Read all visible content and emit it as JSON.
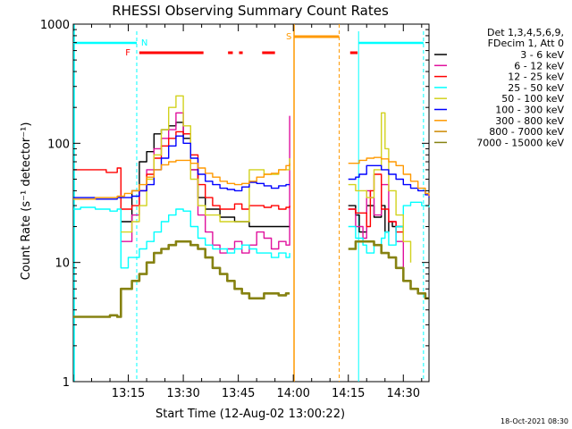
{
  "chart_data": {
    "type": "line",
    "title": "RHESSI Observing Summary Count Rates",
    "xlabel": "Start Time (12-Aug-02 13:00:22)",
    "ylabel": "Count Rate (s⁻¹ detector⁻¹)",
    "y_scale": "log",
    "ylim": [
      1,
      1000
    ],
    "xlim_minutes": [
      0,
      97
    ],
    "x_ticks": [
      {
        "minute": 15,
        "label": "13:15"
      },
      {
        "minute": 30,
        "label": "13:30"
      },
      {
        "minute": 45,
        "label": "13:45"
      },
      {
        "minute": 60,
        "label": "14:00"
      },
      {
        "minute": 75,
        "label": "14:15"
      },
      {
        "minute": 90,
        "label": "14:30"
      }
    ],
    "y_ticks": [
      {
        "value": 1,
        "label": "1"
      },
      {
        "value": 10,
        "label": "10"
      },
      {
        "value": 100,
        "label": "100"
      },
      {
        "value": 1000,
        "label": "1000"
      }
    ],
    "legend_header": [
      "Det 1,3,4,5,6,9,",
      "FDecim 1, Att 0"
    ],
    "legend_placement": "right",
    "timestamp": "18-Oct-2021 08:30",
    "series": [
      {
        "name": "3 - 6 keV",
        "color": "#000000",
        "x": [
          0,
          12,
          13,
          16,
          18,
          20,
          22,
          24,
          26,
          28,
          30,
          32,
          34,
          36,
          40,
          44,
          48,
          52,
          56,
          59,
          60,
          74,
          75,
          77,
          78,
          80,
          82,
          84,
          85,
          86,
          87,
          88,
          90,
          93
        ],
        "y": [
          null,
          null,
          22,
          40,
          70,
          85,
          120,
          130,
          140,
          150,
          110,
          60,
          35,
          28,
          24,
          22,
          20,
          20,
          20,
          20,
          null,
          null,
          30,
          25,
          18,
          30,
          24,
          30,
          18,
          22,
          20,
          20,
          17,
          null
        ]
      },
      {
        "name": "6 - 12 keV",
        "color": "#e0119d",
        "x": [
          0,
          12,
          13,
          16,
          18,
          20,
          22,
          24,
          26,
          28,
          30,
          32,
          34,
          36,
          38,
          40,
          42,
          44,
          46,
          48,
          50,
          52,
          54,
          56,
          58,
          59,
          60,
          74,
          75,
          77,
          79,
          80,
          81,
          82,
          84,
          86,
          88,
          90,
          93
        ],
        "y": [
          null,
          null,
          15,
          25,
          40,
          60,
          90,
          110,
          130,
          180,
          120,
          60,
          25,
          18,
          14,
          12,
          13,
          15,
          12,
          14,
          18,
          16,
          13,
          15,
          14,
          170,
          null,
          null,
          28,
          20,
          16,
          40,
          35,
          25,
          45,
          22,
          15,
          8,
          null
        ]
      },
      {
        "name": "12 - 25 keV",
        "color": "#ff0000",
        "x": [
          0,
          1,
          6,
          9,
          12,
          13,
          16,
          18,
          20,
          22,
          24,
          26,
          28,
          30,
          32,
          34,
          36,
          38,
          40,
          42,
          44,
          46,
          48,
          50,
          52,
          54,
          56,
          58,
          59,
          60,
          74,
          75,
          77,
          80,
          81,
          82,
          84,
          86,
          88,
          90,
          93,
          96,
          97
        ],
        "y": [
          60,
          60,
          60,
          57,
          62,
          28,
          30,
          40,
          55,
          75,
          95,
          110,
          125,
          120,
          80,
          45,
          35,
          30,
          28,
          28,
          31,
          28,
          30,
          30,
          29,
          30,
          28,
          29,
          30,
          null,
          null,
          28,
          26,
          20,
          40,
          55,
          28,
          22,
          18,
          15,
          null,
          null,
          null
        ]
      },
      {
        "name": "25 - 50 keV",
        "color": "#00ffff",
        "x": [
          0,
          2,
          6,
          10,
          12,
          13,
          15,
          18,
          20,
          22,
          24,
          26,
          28,
          30,
          32,
          34,
          36,
          38,
          40,
          42,
          44,
          46,
          48,
          50,
          52,
          54,
          56,
          58,
          59,
          60,
          74,
          75,
          77,
          79,
          80,
          82,
          84,
          85,
          86,
          88,
          90,
          92,
          95,
          97
        ],
        "y": [
          28,
          29,
          28,
          27,
          28,
          9,
          11,
          13,
          15,
          18,
          22,
          25,
          28,
          27,
          20,
          16,
          14,
          13,
          13,
          12,
          13,
          14,
          13,
          12,
          12,
          11,
          12,
          11,
          12,
          null,
          null,
          20,
          16,
          14,
          12,
          14,
          16,
          18,
          14,
          20,
          30,
          32,
          30,
          29
        ]
      },
      {
        "name": "50 - 100 keV",
        "color": "#d2d21e",
        "x": [
          0,
          12,
          13,
          16,
          18,
          20,
          22,
          24,
          26,
          28,
          30,
          32,
          34,
          36,
          40,
          44,
          48,
          52,
          56,
          59,
          60,
          74,
          75,
          77,
          80,
          82,
          84,
          85,
          86,
          88,
          90,
          92,
          93
        ],
        "y": [
          null,
          null,
          18,
          22,
          30,
          50,
          80,
          130,
          200,
          250,
          140,
          50,
          30,
          25,
          22,
          22,
          60,
          55,
          60,
          75,
          null,
          null,
          45,
          40,
          35,
          60,
          180,
          90,
          40,
          25,
          15,
          10,
          null
        ]
      },
      {
        "name": "100 - 300 keV",
        "color": "#0000ff",
        "x": [
          0,
          1,
          6,
          12,
          13,
          16,
          18,
          20,
          22,
          24,
          26,
          28,
          30,
          32,
          34,
          36,
          38,
          40,
          42,
          44,
          46,
          48,
          50,
          52,
          54,
          56,
          58,
          59,
          60,
          74,
          75,
          77,
          78,
          80,
          82,
          84,
          86,
          88,
          90,
          92,
          94,
          96,
          97
        ],
        "y": [
          35,
          35,
          34,
          35,
          35,
          36,
          40,
          45,
          60,
          75,
          95,
          115,
          100,
          75,
          55,
          48,
          45,
          42,
          41,
          40,
          43,
          47,
          46,
          44,
          42,
          44,
          45,
          45,
          null,
          null,
          50,
          52,
          55,
          65,
          65,
          60,
          55,
          50,
          45,
          42,
          40,
          37,
          35
        ]
      },
      {
        "name": "300 - 800 keV",
        "color": "#ff9900",
        "x": [
          0,
          6,
          12,
          14,
          16,
          18,
          20,
          22,
          24,
          26,
          28,
          30,
          32,
          34,
          36,
          38,
          40,
          42,
          44,
          46,
          48,
          50,
          52,
          54,
          56,
          58,
          59,
          60,
          74,
          75,
          78,
          80,
          82,
          84,
          86,
          88,
          90,
          92,
          94,
          96,
          97
        ],
        "y": [
          34,
          35,
          36,
          38,
          40,
          45,
          52,
          60,
          66,
          70,
          72,
          72,
          68,
          62,
          56,
          52,
          48,
          46,
          45,
          46,
          48,
          52,
          55,
          56,
          60,
          65,
          68,
          null,
          null,
          68,
          72,
          75,
          76,
          74,
          70,
          65,
          55,
          48,
          42,
          38,
          36
        ]
      },
      {
        "name": "800 - 7000 keV",
        "color": "#cc8800",
        "x": [
          0,
          12,
          13,
          15,
          20,
          30
        ],
        "y": [
          null,
          null,
          null,
          null,
          null,
          null
        ]
      },
      {
        "name": "7000 - 15000 keV",
        "color": "#868212",
        "x": [
          0,
          2,
          6,
          10,
          12,
          13,
          16,
          18,
          20,
          22,
          24,
          26,
          28,
          30,
          32,
          34,
          36,
          38,
          40,
          42,
          44,
          46,
          48,
          50,
          52,
          54,
          56,
          58,
          59,
          60,
          74,
          75,
          77,
          78,
          80,
          82,
          84,
          86,
          88,
          90,
          92,
          94,
          96,
          97
        ],
        "y": [
          3.5,
          3.5,
          3.5,
          3.6,
          3.5,
          6,
          7,
          8,
          10,
          12,
          13,
          14,
          15,
          15,
          14,
          13,
          11,
          9,
          8,
          7,
          6,
          5.5,
          5,
          5,
          5.5,
          5.5,
          5.3,
          5.5,
          5.5,
          null,
          null,
          13,
          15,
          15,
          15,
          14,
          12,
          11,
          9,
          7,
          6,
          5.5,
          5,
          5
        ]
      }
    ]
  },
  "annotations": {
    "n_label": "N",
    "f_label": "F",
    "s_label": "S"
  }
}
